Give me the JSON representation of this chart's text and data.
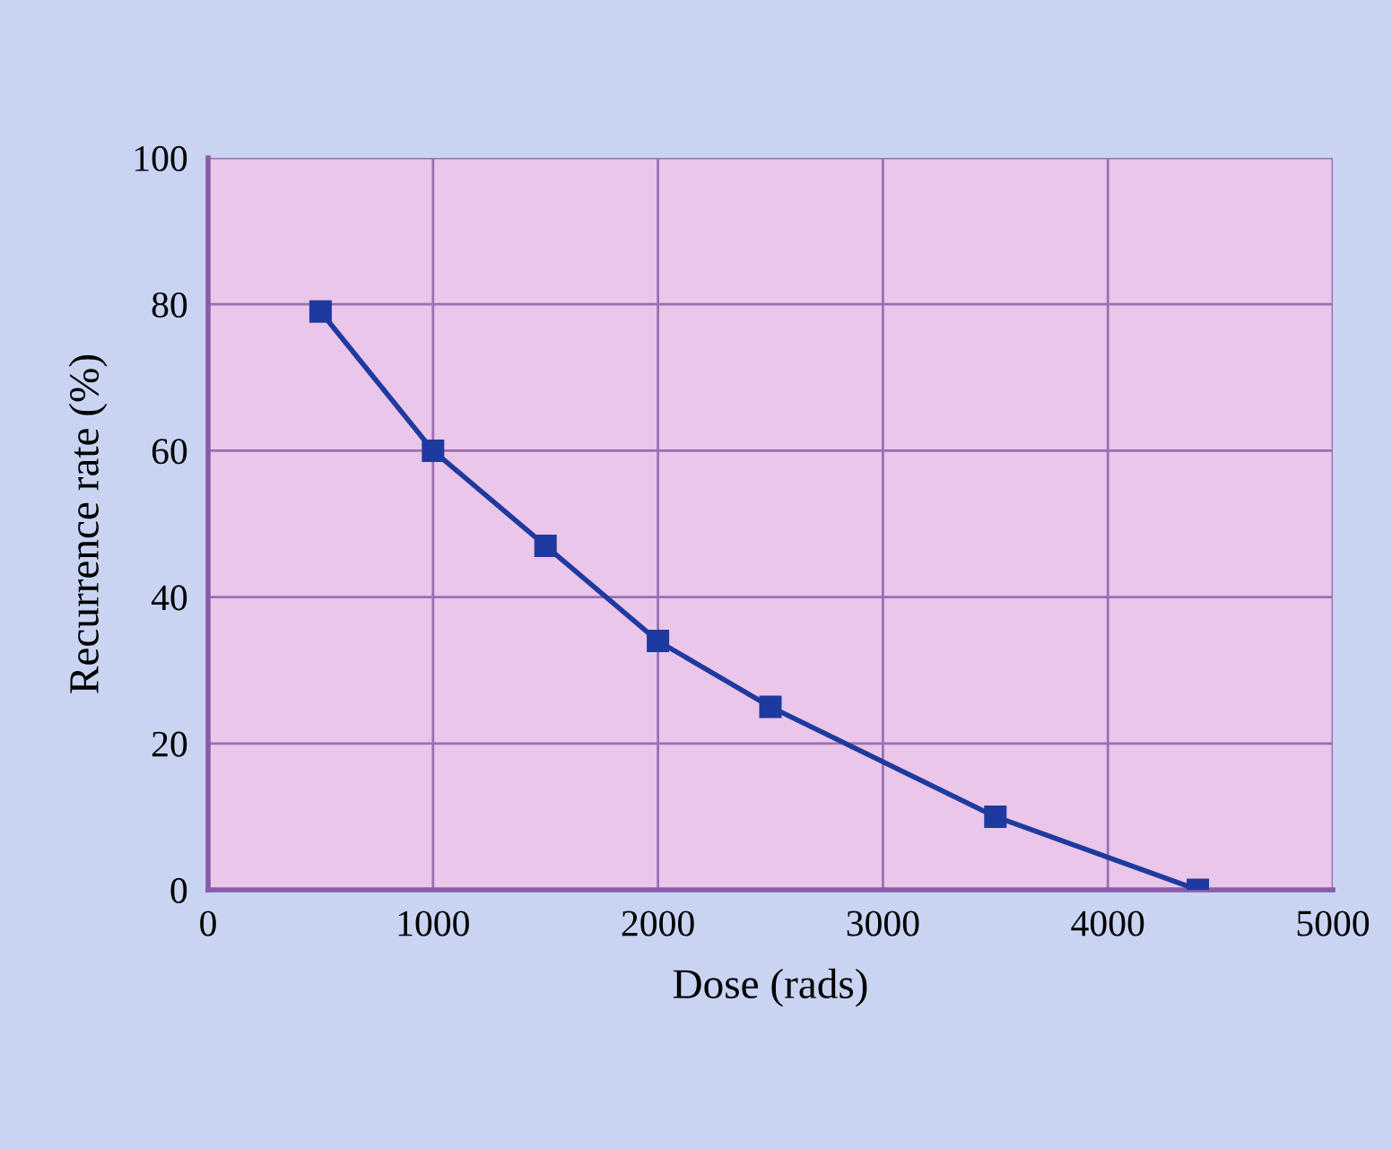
{
  "chart_data": {
    "type": "line",
    "xlabel": "Dose (rads)",
    "ylabel": "Recurrence rate (%)",
    "x": [
      500,
      1000,
      1500,
      2000,
      2500,
      3500,
      4400
    ],
    "series": [
      {
        "color": "#1f3a9e",
        "values": [
          79,
          60,
          47,
          34,
          25,
          10,
          0
        ]
      }
    ],
    "xlim": [
      0,
      5000
    ],
    "xticks": [
      0,
      1000,
      2000,
      3000,
      4000,
      5000
    ],
    "ylim": [
      0,
      100
    ],
    "yticks": [
      0,
      20,
      40,
      60,
      80,
      100
    ],
    "grid": true,
    "marker": "square",
    "line_style": "solid"
  }
}
